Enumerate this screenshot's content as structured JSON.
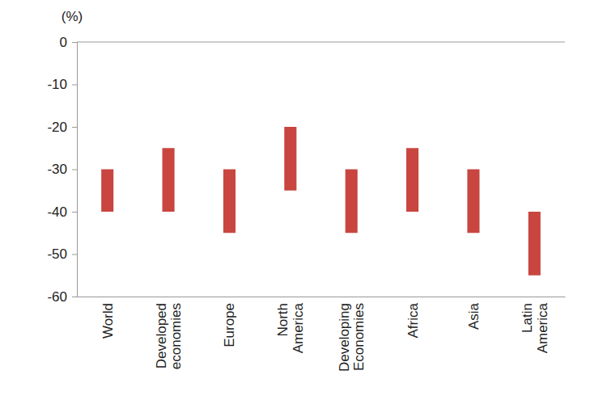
{
  "chart_data": {
    "type": "bar",
    "y_label": "(%)",
    "categories": [
      "World",
      "Developed economies",
      "Europe",
      "North America",
      "Developing Economies",
      "Africa",
      "Asia",
      "Latin America"
    ],
    "high": [
      -30,
      -25,
      -30,
      -20,
      -30,
      -25,
      -30,
      -40
    ],
    "low": [
      -40,
      -40,
      -45,
      -35,
      -45,
      -40,
      -45,
      -55
    ],
    "color": "#c8463f",
    "ylim": [
      -60,
      0
    ],
    "yticks": [
      0,
      -10,
      -20,
      -30,
      -40,
      -50,
      -60
    ],
    "grid": false
  }
}
